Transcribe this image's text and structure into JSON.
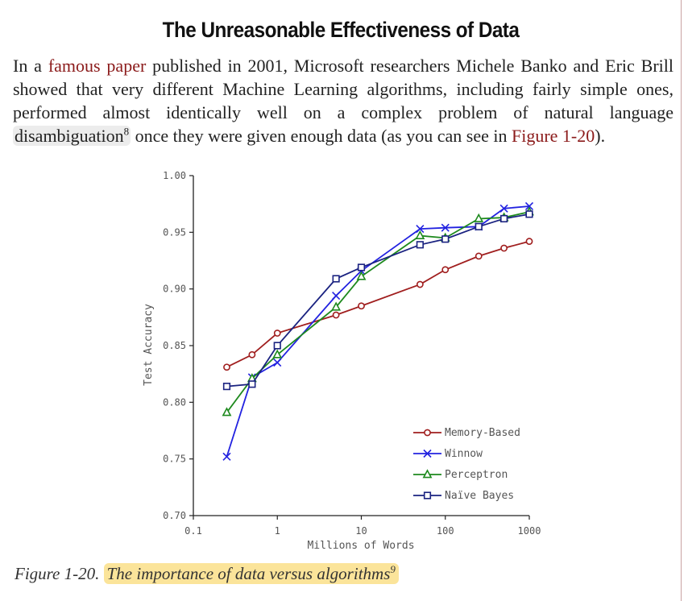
{
  "heading": "The Unreasonable Effectiveness of Data",
  "paragraph": {
    "p1": "In a ",
    "link_text": "famous paper",
    "p2": " published in 2001, Microsoft researchers Michele Banko and Eric Brill showed that very different Machine Learning algorithms, including fairly simple ones, performed almost identically well on a complex problem of natural language ",
    "highlight": "disambiguation",
    "note": "8",
    "p3": " once they were given enough data (as you can see in ",
    "figure_ref": "Figure 1-20",
    "p4": ")."
  },
  "caption": {
    "label": "Figure 1-20.",
    "text": "The importance of data versus algorithms",
    "note": "9"
  },
  "chart_data": {
    "type": "line",
    "xlabel": "Millions of Words",
    "ylabel": "Test Accuracy",
    "x_scale": "log",
    "xlim": [
      0.1,
      1000
    ],
    "ylim": [
      0.7,
      1.0
    ],
    "x_ticks": [
      0.1,
      1,
      10,
      100,
      1000
    ],
    "x_tick_labels": [
      "0.1",
      "1",
      "10",
      "100",
      "1000"
    ],
    "y_ticks": [
      0.7,
      0.75,
      0.8,
      0.85,
      0.9,
      0.95,
      1.0
    ],
    "y_tick_labels": [
      "0.70",
      "0.75",
      "0.80",
      "0.85",
      "0.90",
      "0.95",
      "1.00"
    ],
    "grid": false,
    "legend_position": "bottom-right",
    "x": [
      0.25,
      0.5,
      1,
      5,
      10,
      50,
      100,
      250,
      500,
      1000
    ],
    "series": [
      {
        "name": "Memory-Based",
        "color": "#a01e1e",
        "marker": "circle",
        "values": [
          0.831,
          0.842,
          0.861,
          0.877,
          0.885,
          0.904,
          0.917,
          0.929,
          0.936,
          0.942
        ]
      },
      {
        "name": "Winnow",
        "color": "#2222e0",
        "marker": "x",
        "values": [
          0.752,
          0.822,
          0.835,
          0.894,
          0.916,
          0.953,
          0.954,
          0.955,
          0.971,
          0.973
        ]
      },
      {
        "name": "Perceptron",
        "color": "#1e8a1e",
        "marker": "triangle",
        "values": [
          0.791,
          0.821,
          0.842,
          0.884,
          0.911,
          0.947,
          0.945,
          0.962,
          0.963,
          0.968
        ]
      },
      {
        "name": "Naïve Bayes",
        "color": "#1a2280",
        "marker": "square",
        "values": [
          0.814,
          0.816,
          0.85,
          0.909,
          0.919,
          0.939,
          0.944,
          0.955,
          0.962,
          0.966
        ]
      }
    ]
  }
}
